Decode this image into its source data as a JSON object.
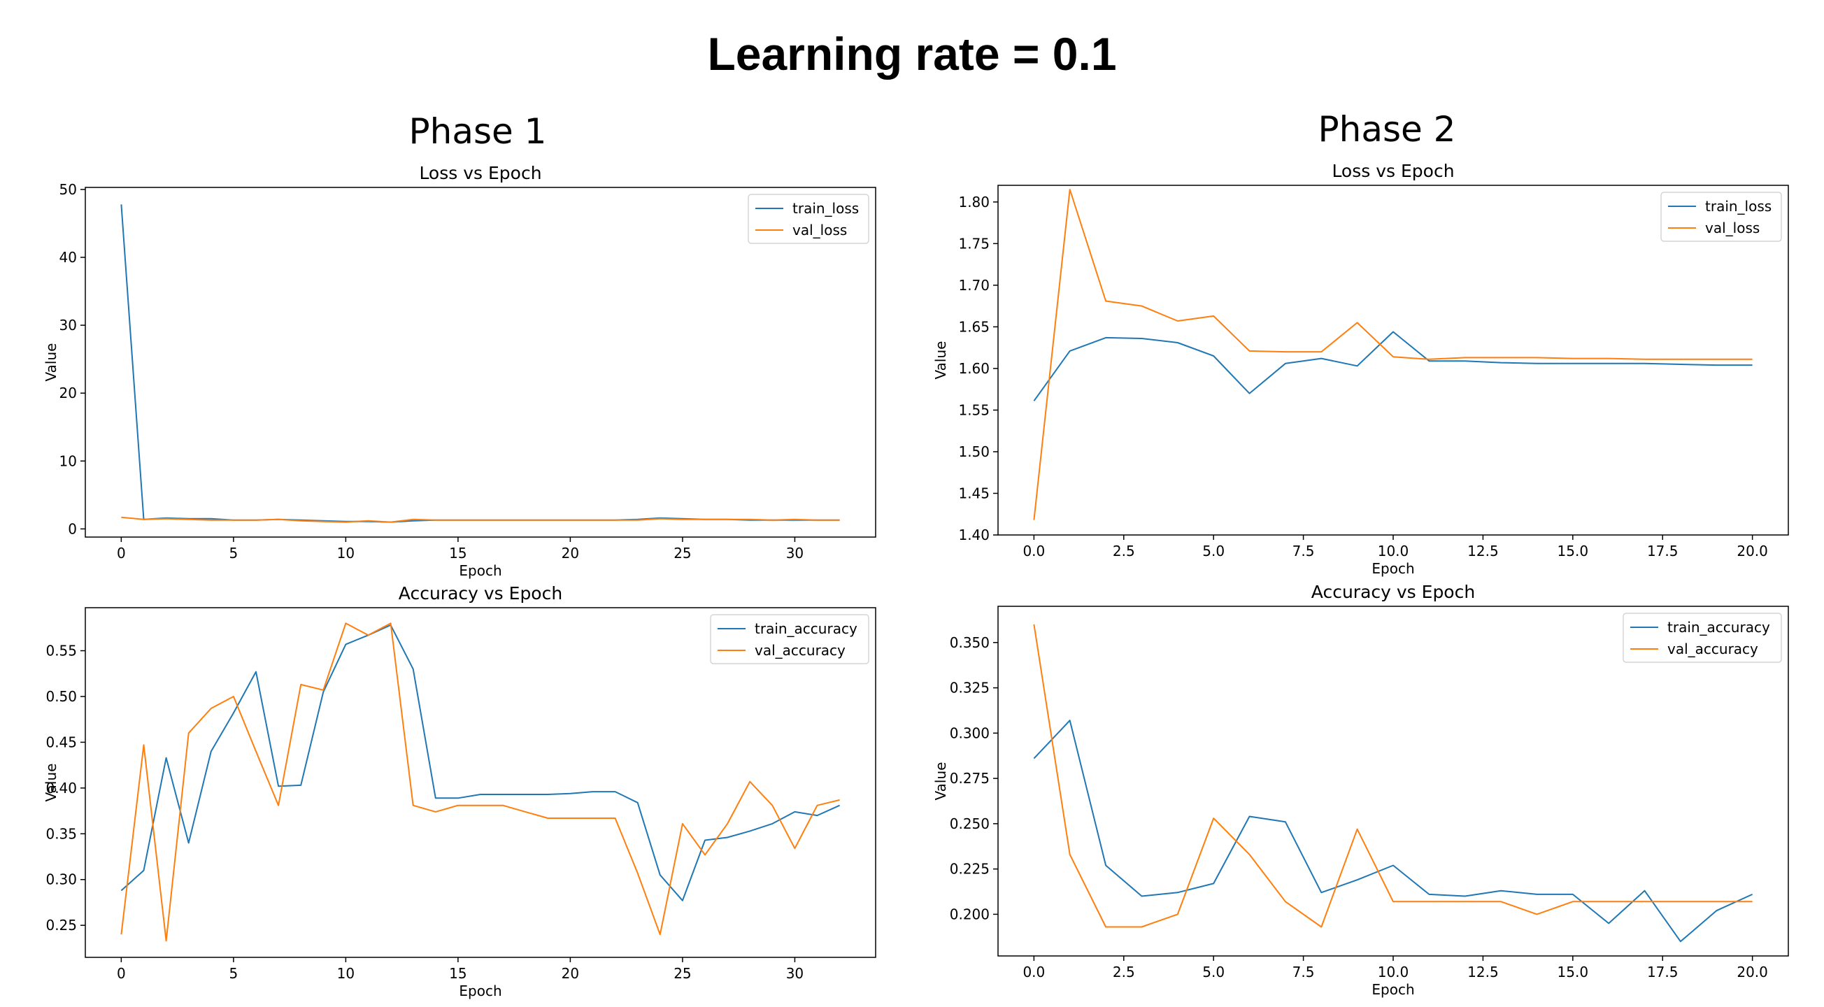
{
  "figure": {
    "title": "Learning rate = 0.1",
    "phase1_title": "Phase 1",
    "phase2_title": "Phase 2"
  },
  "chart_data": [
    {
      "id": "p1-loss",
      "type": "line",
      "title": "Loss vs Epoch",
      "xlabel": "Epoch",
      "ylabel": "Value",
      "xlim": [
        -1.6,
        33.6
      ],
      "ylim": [
        -1.2,
        50.3
      ],
      "xticks": [
        0,
        5,
        10,
        15,
        20,
        25,
        30
      ],
      "xtick_labels": [
        "0",
        "5",
        "10",
        "15",
        "20",
        "25",
        "30"
      ],
      "yticks": [
        0,
        10,
        20,
        30,
        40,
        50
      ],
      "ytick_labels": [
        "0",
        "10",
        "20",
        "30",
        "40",
        "50"
      ],
      "legend": "top-right",
      "x": [
        0,
        1,
        2,
        3,
        4,
        5,
        6,
        7,
        8,
        9,
        10,
        11,
        12,
        13,
        14,
        15,
        16,
        17,
        18,
        19,
        20,
        21,
        22,
        23,
        24,
        25,
        26,
        27,
        28,
        29,
        30,
        31,
        32
      ],
      "series": [
        {
          "name": "train_loss",
          "color": "#1f77b4",
          "values": [
            47.8,
            1.4,
            1.6,
            1.5,
            1.5,
            1.3,
            1.3,
            1.4,
            1.3,
            1.2,
            1.1,
            1.1,
            1.0,
            1.2,
            1.3,
            1.3,
            1.3,
            1.3,
            1.3,
            1.3,
            1.3,
            1.3,
            1.3,
            1.4,
            1.6,
            1.5,
            1.4,
            1.4,
            1.3,
            1.3,
            1.3,
            1.3,
            1.3
          ]
        },
        {
          "name": "val_loss",
          "color": "#ff7f0e",
          "values": [
            1.7,
            1.4,
            1.5,
            1.4,
            1.3,
            1.3,
            1.3,
            1.4,
            1.2,
            1.1,
            1.0,
            1.2,
            1.0,
            1.4,
            1.3,
            1.3,
            1.3,
            1.3,
            1.3,
            1.3,
            1.3,
            1.3,
            1.3,
            1.3,
            1.5,
            1.4,
            1.4,
            1.4,
            1.4,
            1.3,
            1.4,
            1.3,
            1.3
          ]
        }
      ]
    },
    {
      "id": "p2-loss",
      "type": "line",
      "title": "Loss vs Epoch",
      "xlabel": "Epoch",
      "ylabel": "Value",
      "xlim": [
        -1.0,
        21.0
      ],
      "ylim": [
        1.4,
        1.82
      ],
      "xticks": [
        0,
        2.5,
        5,
        7.5,
        10,
        12.5,
        15,
        17.5,
        20
      ],
      "xtick_labels": [
        "0.0",
        "2.5",
        "5.0",
        "7.5",
        "10.0",
        "12.5",
        "15.0",
        "17.5",
        "20.0"
      ],
      "yticks": [
        1.4,
        1.45,
        1.5,
        1.55,
        1.6,
        1.65,
        1.7,
        1.75,
        1.8
      ],
      "ytick_labels": [
        "1.40",
        "1.45",
        "1.50",
        "1.55",
        "1.60",
        "1.65",
        "1.70",
        "1.75",
        "1.80"
      ],
      "legend": "top-right",
      "x": [
        0,
        1,
        2,
        3,
        4,
        5,
        6,
        7,
        8,
        9,
        10,
        11,
        12,
        13,
        14,
        15,
        16,
        17,
        18,
        19,
        20
      ],
      "series": [
        {
          "name": "train_loss",
          "color": "#1f77b4",
          "values": [
            1.561,
            1.621,
            1.637,
            1.636,
            1.631,
            1.615,
            1.57,
            1.606,
            1.612,
            1.603,
            1.644,
            1.609,
            1.609,
            1.607,
            1.606,
            1.606,
            1.606,
            1.606,
            1.605,
            1.604,
            1.604
          ]
        },
        {
          "name": "val_loss",
          "color": "#ff7f0e",
          "values": [
            1.418,
            1.815,
            1.681,
            1.675,
            1.657,
            1.663,
            1.621,
            1.62,
            1.62,
            1.655,
            1.614,
            1.611,
            1.613,
            1.613,
            1.613,
            1.612,
            1.612,
            1.611,
            1.611,
            1.611,
            1.611
          ]
        }
      ]
    },
    {
      "id": "p1-acc",
      "type": "line",
      "title": "Accuracy vs Epoch",
      "xlabel": "Epoch",
      "ylabel": "Value",
      "xlim": [
        -1.6,
        33.6
      ],
      "ylim": [
        0.215,
        0.597
      ],
      "xticks": [
        0,
        5,
        10,
        15,
        20,
        25,
        30
      ],
      "xtick_labels": [
        "0",
        "5",
        "10",
        "15",
        "20",
        "25",
        "30"
      ],
      "yticks": [
        0.25,
        0.3,
        0.35,
        0.4,
        0.45,
        0.5,
        0.55
      ],
      "ytick_labels": [
        "0.25",
        "0.30",
        "0.35",
        "0.40",
        "0.45",
        "0.50",
        "0.55"
      ],
      "legend": "top-right",
      "x": [
        0,
        1,
        2,
        3,
        4,
        5,
        6,
        7,
        8,
        9,
        10,
        11,
        12,
        13,
        14,
        15,
        16,
        17,
        18,
        19,
        20,
        21,
        22,
        23,
        24,
        25,
        26,
        27,
        28,
        29,
        30,
        31,
        32
      ],
      "series": [
        {
          "name": "train_accuracy",
          "color": "#1f77b4",
          "values": [
            0.288,
            0.31,
            0.433,
            0.34,
            0.44,
            0.482,
            0.527,
            0.402,
            0.403,
            0.505,
            0.557,
            0.567,
            0.578,
            0.53,
            0.389,
            0.389,
            0.393,
            0.393,
            0.393,
            0.393,
            0.394,
            0.396,
            0.396,
            0.384,
            0.305,
            0.277,
            0.343,
            0.346,
            0.353,
            0.361,
            0.374,
            0.37,
            0.381
          ]
        },
        {
          "name": "val_accuracy",
          "color": "#ff7f0e",
          "values": [
            0.24,
            0.447,
            0.233,
            0.46,
            0.487,
            0.5,
            0.44,
            0.381,
            0.513,
            0.507,
            0.58,
            0.567,
            0.58,
            0.381,
            0.374,
            0.381,
            0.381,
            0.381,
            0.374,
            0.367,
            0.367,
            0.367,
            0.367,
            0.307,
            0.24,
            0.361,
            0.327,
            0.361,
            0.407,
            0.381,
            0.334,
            0.381,
            0.387
          ]
        }
      ]
    },
    {
      "id": "p2-acc",
      "type": "line",
      "title": "Accuracy vs Epoch",
      "xlabel": "Epoch",
      "ylabel": "Value",
      "xlim": [
        -1.0,
        21.0
      ],
      "ylim": [
        0.177,
        0.37
      ],
      "xticks": [
        0,
        2.5,
        5,
        7.5,
        10,
        12.5,
        15,
        17.5,
        20
      ],
      "xtick_labels": [
        "0.0",
        "2.5",
        "5.0",
        "7.5",
        "10.0",
        "12.5",
        "15.0",
        "17.5",
        "20.0"
      ],
      "yticks": [
        0.2,
        0.225,
        0.25,
        0.275,
        0.3,
        0.325,
        0.35
      ],
      "ytick_labels": [
        "0.200",
        "0.225",
        "0.250",
        "0.275",
        "0.300",
        "0.325",
        "0.350"
      ],
      "legend": "top-right",
      "x": [
        0,
        1,
        2,
        3,
        4,
        5,
        6,
        7,
        8,
        9,
        10,
        11,
        12,
        13,
        14,
        15,
        16,
        17,
        18,
        19,
        20
      ],
      "series": [
        {
          "name": "train_accuracy",
          "color": "#1f77b4",
          "values": [
            0.286,
            0.307,
            0.227,
            0.21,
            0.212,
            0.217,
            0.254,
            0.251,
            0.212,
            0.219,
            0.227,
            0.211,
            0.21,
            0.213,
            0.211,
            0.211,
            0.195,
            0.213,
            0.185,
            0.202,
            0.211
          ]
        },
        {
          "name": "val_accuracy",
          "color": "#ff7f0e",
          "values": [
            0.36,
            0.233,
            0.193,
            0.193,
            0.2,
            0.253,
            0.233,
            0.207,
            0.193,
            0.247,
            0.207,
            0.207,
            0.207,
            0.207,
            0.2,
            0.207,
            0.207,
            0.207,
            0.207,
            0.207,
            0.207
          ]
        }
      ]
    }
  ]
}
